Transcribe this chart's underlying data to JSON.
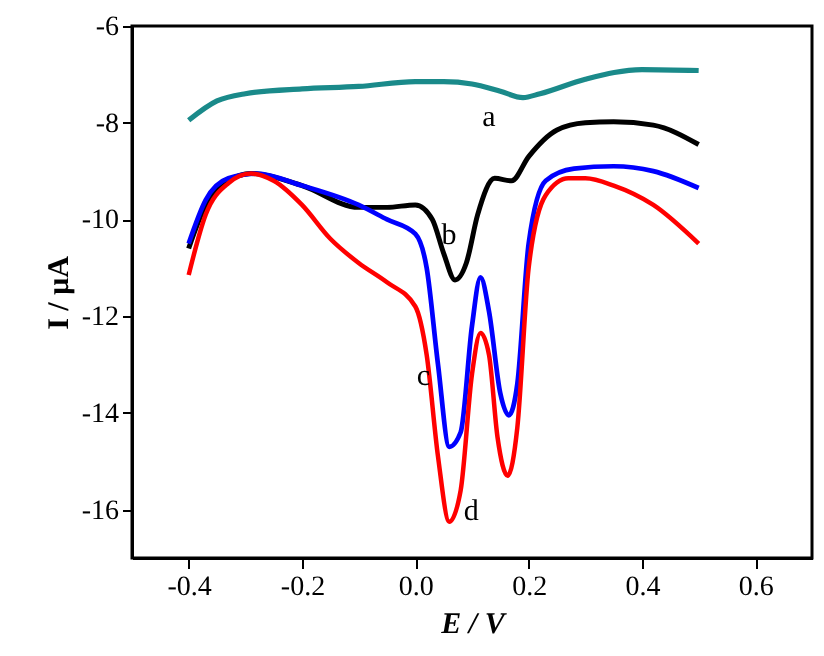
{
  "chart_data": {
    "type": "line",
    "xlabel": "E / V",
    "ylabel": "I / μA",
    "xlim": [
      -0.5,
      0.7
    ],
    "ylim": [
      -17,
      -6
    ],
    "xticks": [
      -0.4,
      -0.2,
      {
        "value": 0,
        "label": "0.0"
      },
      0.2,
      0.4,
      0.6
    ],
    "yticks": [
      -16,
      -14,
      -12,
      -10,
      -8,
      -6
    ],
    "grid": false,
    "line_style": "solid",
    "marker": "none",
    "series": [
      {
        "name": "a",
        "color": "#1a8a8a",
        "x": [
          -0.4,
          -0.35,
          -0.3,
          -0.2,
          -0.1,
          0.0,
          0.05,
          0.1,
          0.15,
          0.19,
          0.22,
          0.3,
          0.4,
          0.5
        ],
        "values": [
          -7.95,
          -7.55,
          -7.4,
          -7.3,
          -7.25,
          -7.15,
          -7.15,
          -7.2,
          -7.35,
          -7.48,
          -7.4,
          -7.1,
          -6.9,
          -6.92
        ]
      },
      {
        "name": "b",
        "color": "#000000",
        "x": [
          -0.4,
          -0.37,
          -0.33,
          -0.29,
          -0.2,
          -0.1,
          -0.05,
          0.0,
          0.03,
          0.05,
          0.07,
          0.09,
          0.11,
          0.14,
          0.17,
          0.2,
          0.25,
          0.3,
          0.35,
          0.42,
          0.5
        ],
        "values": [
          -10.6,
          -9.7,
          -9.2,
          -9.05,
          -9.3,
          -9.75,
          -9.75,
          -9.7,
          -10.0,
          -10.7,
          -11.25,
          -10.9,
          -9.9,
          -9.15,
          -9.2,
          -8.7,
          -8.15,
          -8.0,
          -7.98,
          -8.05,
          -8.45
        ]
      },
      {
        "name": "c",
        "color": "#0000ff",
        "x": [
          -0.4,
          -0.37,
          -0.33,
          -0.28,
          -0.2,
          -0.1,
          -0.05,
          0.0,
          0.02,
          0.04,
          0.06,
          0.08,
          0.1,
          0.115,
          0.13,
          0.15,
          0.165,
          0.18,
          0.2,
          0.23,
          0.28,
          0.35,
          0.42,
          0.5
        ],
        "values": [
          -10.5,
          -9.6,
          -9.15,
          -9.05,
          -9.3,
          -9.7,
          -10.0,
          -10.3,
          -11.0,
          -13.0,
          -14.7,
          -14.4,
          -12.2,
          -11.2,
          -11.9,
          -13.6,
          -14.05,
          -13.4,
          -10.5,
          -9.2,
          -8.95,
          -8.9,
          -9.0,
          -9.35
        ]
      },
      {
        "name": "d",
        "color": "#ff0000",
        "x": [
          -0.4,
          -0.37,
          -0.33,
          -0.29,
          -0.25,
          -0.2,
          -0.15,
          -0.1,
          -0.05,
          0.0,
          0.02,
          0.04,
          0.06,
          0.08,
          0.1,
          0.115,
          0.13,
          0.145,
          0.163,
          0.18,
          0.2,
          0.23,
          0.27,
          0.3,
          0.35,
          0.42,
          0.5
        ],
        "values": [
          -11.15,
          -9.9,
          -9.25,
          -9.05,
          -9.2,
          -9.7,
          -10.4,
          -10.9,
          -11.3,
          -11.8,
          -12.8,
          -14.9,
          -16.25,
          -15.6,
          -13.2,
          -12.35,
          -12.8,
          -14.5,
          -15.3,
          -14.3,
          -11.0,
          -9.5,
          -9.15,
          -9.15,
          -9.3,
          -9.7,
          -10.5
        ]
      }
    ]
  }
}
